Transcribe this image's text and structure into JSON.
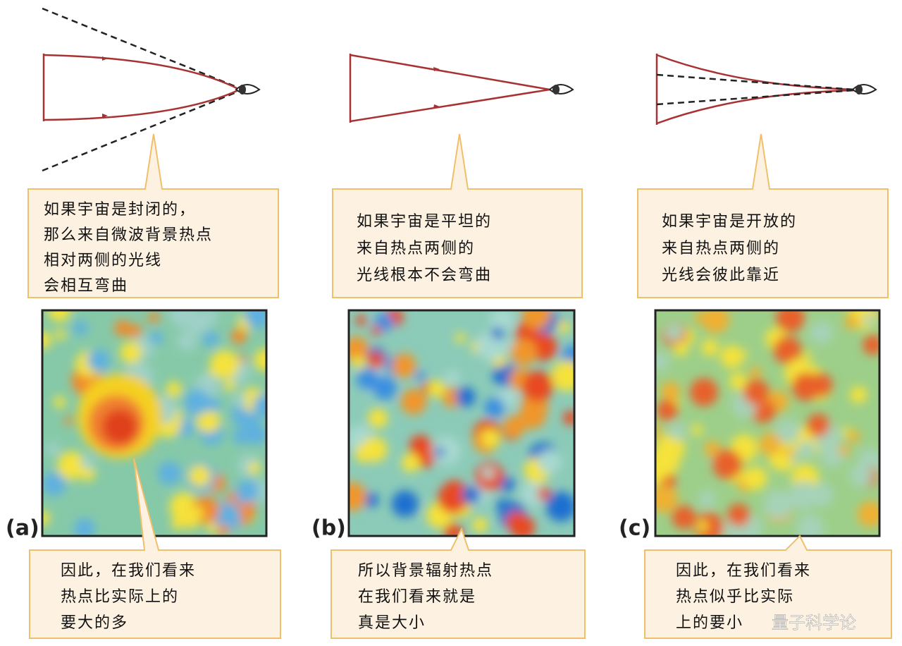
{
  "panels": [
    {
      "label": "(a)",
      "top_text": [
        "如果宇宙是封闭的，",
        "那么来自微波背景热点",
        "相对两侧的光线",
        "会相互弯曲"
      ],
      "bottom_text": [
        "因此，在我们看来",
        "热点比实际上的",
        "要大的多"
      ]
    },
    {
      "label": "(b)",
      "top_text": [
        "如果宇宙是平坦的",
        "来自热点两侧的",
        "光线根本不会弯曲"
      ],
      "bottom_text": [
        "所以背景辐射热点",
        "在我们看来就是",
        "真是大小"
      ]
    },
    {
      "label": "(c)",
      "top_text": [
        "如果宇宙是开放的",
        "来自热点两侧的",
        "光线会彼此靠近"
      ],
      "bottom_text": [
        "因此，在我们看来",
        "热点似乎比实际",
        "上的要小"
      ]
    }
  ],
  "watermark": "量子科学论"
}
